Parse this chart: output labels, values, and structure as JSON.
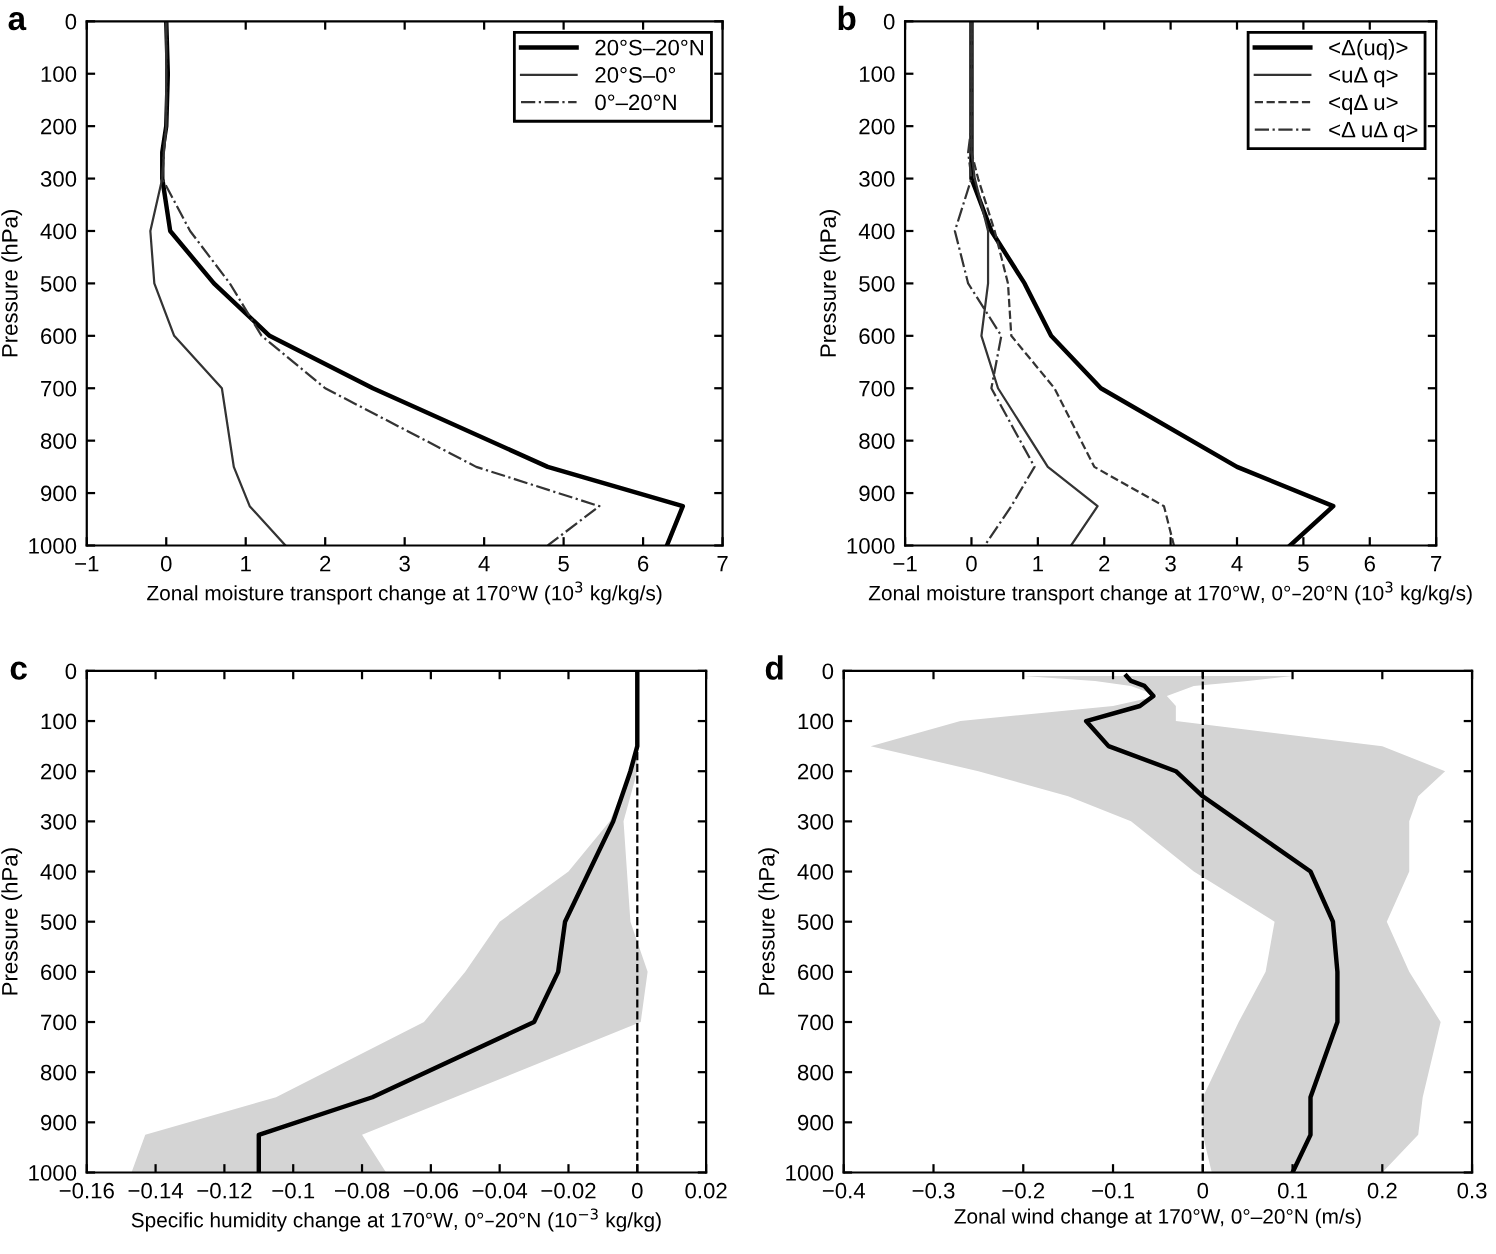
{
  "chart_data": [
    {
      "type": "line",
      "title": "a",
      "orientation": "horizontal",
      "xlabel": "Zonal moisture transport change at 170°W (10$^{3}$ kg/kg/s)",
      "ylabel": "Pressure (hPa)",
      "xlim": [
        -1,
        7
      ],
      "xticks": [
        {
          "value": -1,
          "label": "−1"
        },
        0,
        1,
        2,
        3,
        4,
        5,
        6,
        7
      ],
      "ylim": [
        1000,
        0
      ],
      "yticks": [
        0,
        100,
        200,
        300,
        400,
        500,
        600,
        700,
        800,
        900,
        1000
      ],
      "legend": "top right",
      "series": [
        {
          "name": "20°S–20°N",
          "color": "#000000",
          "line_style": "solid",
          "x": [
            0,
            100,
            200,
            250,
            300,
            400,
            500,
            600,
            700,
            850,
            925,
            1000
          ],
          "values": [
            0.0,
            0.02,
            0.0,
            -0.05,
            -0.05,
            0.05,
            0.6,
            1.3,
            2.6,
            4.8,
            6.5,
            6.3
          ]
        },
        {
          "name": "20°S–0°",
          "color": "#333333",
          "line_style": "solid",
          "x": [
            0,
            100,
            200,
            250,
            300,
            400,
            500,
            600,
            700,
            850,
            925,
            1000
          ],
          "values": [
            0.0,
            0.0,
            0.0,
            -0.03,
            -0.05,
            -0.2,
            -0.15,
            0.1,
            0.7,
            0.85,
            1.05,
            1.5
          ]
        },
        {
          "name": "0°–20°N",
          "color": "#333333",
          "line_style": "dashdot",
          "x": [
            0,
            100,
            200,
            250,
            300,
            400,
            500,
            600,
            700,
            850,
            925,
            1000
          ],
          "values": [
            0.0,
            0.0,
            0.0,
            -0.03,
            -0.05,
            0.3,
            0.8,
            1.2,
            2.0,
            3.9,
            5.45,
            4.8
          ]
        }
      ]
    },
    {
      "type": "line",
      "title": "b",
      "orientation": "horizontal",
      "xlabel": "Zonal moisture transport change at 170°W, 0°–20°N (10$^{3}$ kg/kg/s)",
      "ylabel": "Pressure (hPa)",
      "xlim": [
        -1,
        7
      ],
      "xticks": [
        {
          "value": -1,
          "label": "−1"
        },
        0,
        1,
        2,
        3,
        4,
        5,
        6,
        7
      ],
      "ylim": [
        1000,
        0
      ],
      "yticks": [
        0,
        100,
        200,
        300,
        400,
        500,
        600,
        700,
        800,
        900,
        1000
      ],
      "legend": "top right",
      "series": [
        {
          "name": "<Δ(uq)>",
          "color": "#000000",
          "line_style": "solid",
          "x": [
            0,
            100,
            200,
            250,
            300,
            400,
            500,
            600,
            700,
            850,
            925,
            1000
          ],
          "values": [
            0.0,
            0.0,
            0.0,
            0.0,
            0.0,
            0.3,
            0.8,
            1.2,
            1.95,
            4.0,
            5.45,
            4.8
          ]
        },
        {
          "name": "<uΔ q>",
          "color": "#333333",
          "line_style": "solid",
          "x": [
            0,
            100,
            200,
            250,
            300,
            400,
            500,
            600,
            700,
            850,
            925,
            1000
          ],
          "values": [
            0.0,
            0.0,
            0.0,
            0.0,
            0.05,
            0.25,
            0.25,
            0.15,
            0.4,
            1.15,
            1.9,
            1.5
          ]
        },
        {
          "name": "<qΔ u>",
          "color": "#333333",
          "line_style": "dashed",
          "x": [
            0,
            100,
            200,
            250,
            300,
            400,
            500,
            600,
            700,
            850,
            925,
            1000
          ],
          "values": [
            0.0,
            0.0,
            0.0,
            0.0,
            0.1,
            0.35,
            0.55,
            0.6,
            1.25,
            1.85,
            2.9,
            3.05
          ]
        },
        {
          "name": "<Δ uΔ q>",
          "color": "#333333",
          "line_style": "dashdot",
          "x": [
            0,
            100,
            200,
            250,
            300,
            400,
            500,
            600,
            700,
            850,
            925,
            1000
          ],
          "values": [
            0.0,
            0.0,
            0.0,
            -0.05,
            0.0,
            -0.25,
            -0.05,
            0.45,
            0.3,
            0.95,
            0.6,
            0.2
          ]
        }
      ]
    },
    {
      "type": "line",
      "title": "c",
      "orientation": "horizontal",
      "xlabel": "Specific humidity change at 170°W, 0°–20°N (10$^{−3}$ kg/kg)",
      "ylabel": "Pressure (hPa)",
      "xlim": [
        -0.16,
        0.02
      ],
      "xticks": [
        {
          "value": -0.16,
          "label": "−0.16"
        },
        {
          "value": -0.14,
          "label": "−0.14"
        },
        {
          "value": -0.12,
          "label": "−0.12"
        },
        {
          "value": -0.1,
          "label": "−0.1"
        },
        {
          "value": -0.08,
          "label": "−0.08"
        },
        {
          "value": -0.06,
          "label": "−0.06"
        },
        {
          "value": -0.04,
          "label": "−0.04"
        },
        {
          "value": -0.02,
          "label": "−0.02"
        },
        0,
        0.02
      ],
      "ylim": [
        1000,
        0
      ],
      "yticks": [
        0,
        100,
        200,
        300,
        400,
        500,
        600,
        700,
        800,
        900,
        1000
      ],
      "ref_lines": [
        {
          "axis": "x",
          "value": 0,
          "color": "#000000",
          "line_style": "dashed"
        }
      ],
      "series": [
        {
          "color": "#000000",
          "line_style": "solid",
          "x": [
            0,
            100,
            150,
            200,
            300,
            400,
            500,
            600,
            700,
            850,
            925,
            1000
          ],
          "values": [
            0.0,
            0.0,
            0.0,
            -0.002,
            -0.007,
            -0.014,
            -0.021,
            -0.023,
            -0.03,
            -0.077,
            -0.11,
            -0.11
          ],
          "lower": [
            0.0,
            0.0,
            0.0,
            -0.002,
            -0.008,
            -0.02,
            -0.04,
            -0.05,
            -0.062,
            -0.105,
            -0.143,
            -0.147
          ],
          "upper": [
            0.0,
            0.0,
            0.0,
            0.0,
            -0.004,
            -0.003,
            -0.002,
            0.003,
            0.001,
            -0.053,
            -0.08,
            -0.073
          ]
        }
      ]
    },
    {
      "type": "line",
      "title": "d",
      "orientation": "horizontal",
      "xlabel": "Zonal wind change at 170°W, 0°–20°N (m/s)",
      "ylabel": "Pressure (hPa)",
      "xlim": [
        -0.4,
        0.3
      ],
      "xticks": [
        {
          "value": -0.4,
          "label": "−0.4"
        },
        {
          "value": -0.3,
          "label": "−0.3"
        },
        {
          "value": -0.2,
          "label": "−0.2"
        },
        {
          "value": -0.1,
          "label": "−0.1"
        },
        0,
        0.1,
        0.2,
        0.3
      ],
      "ylim": [
        1000,
        0
      ],
      "yticks": [
        0,
        100,
        200,
        300,
        400,
        500,
        600,
        700,
        800,
        900,
        1000
      ],
      "ref_lines": [
        {
          "axis": "x",
          "value": 0,
          "color": "#000000",
          "line_style": "dashed"
        }
      ],
      "series": [
        {
          "color": "#000000",
          "line_style": "solid",
          "x": [
            10,
            20,
            30,
            50,
            70,
            100,
            150,
            200,
            250,
            300,
            400,
            500,
            600,
            700,
            850,
            925,
            1000
          ],
          "values": [
            -0.085,
            -0.08,
            -0.065,
            -0.055,
            -0.07,
            -0.13,
            -0.105,
            -0.03,
            0.0,
            0.04,
            0.12,
            0.145,
            0.15,
            0.15,
            0.12,
            0.12,
            0.1
          ],
          "lower": [
            -0.2,
            -0.12,
            -0.08,
            -0.05,
            -0.1,
            -0.27,
            -0.37,
            -0.25,
            -0.15,
            -0.08,
            -0.01,
            0.08,
            0.07,
            0.04,
            0.0,
            0.0,
            0.01
          ],
          "upper": [
            0.1,
            0.05,
            -0.01,
            -0.04,
            -0.03,
            -0.03,
            0.2,
            0.27,
            0.24,
            0.23,
            0.23,
            0.205,
            0.23,
            0.265,
            0.245,
            0.24,
            0.2
          ]
        }
      ]
    }
  ]
}
